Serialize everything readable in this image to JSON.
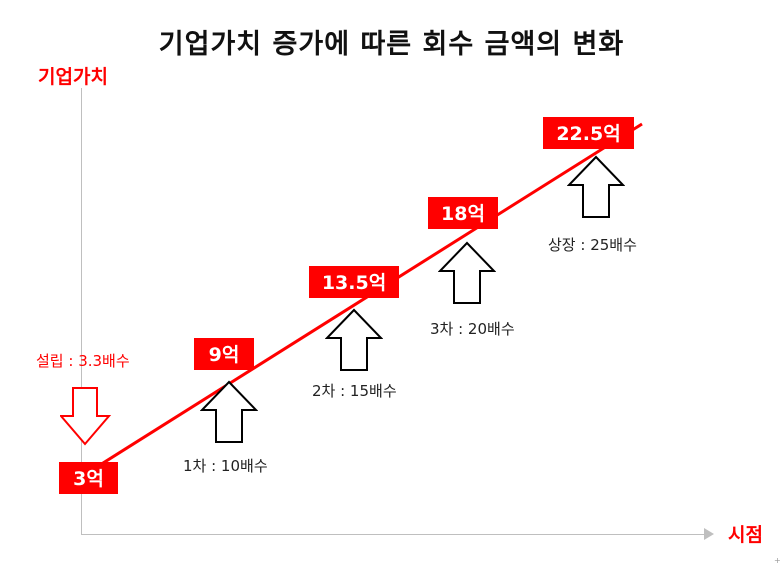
{
  "title": "기업가치 증가에 따른 회수 금액의 변화",
  "y_axis_label": "기업가치",
  "x_axis_label": "시점",
  "accent_color": "#ff0000",
  "stages": [
    {
      "value_label": "3억",
      "stage_label": "설립 : 3.3배수",
      "arrow_style": "hollow-red-down"
    },
    {
      "value_label": "9억",
      "stage_label": "1차 : 10배수",
      "arrow_style": "hollow-black-up"
    },
    {
      "value_label": "13.5억",
      "stage_label": "2차 : 15배수",
      "arrow_style": "hollow-black-up"
    },
    {
      "value_label": "18억",
      "stage_label": "3차 : 20배수",
      "arrow_style": "hollow-black-up"
    },
    {
      "value_label": "22.5억",
      "stage_label": "상장 : 25배수",
      "arrow_style": "hollow-black-up"
    }
  ],
  "corner_mark": "+"
}
